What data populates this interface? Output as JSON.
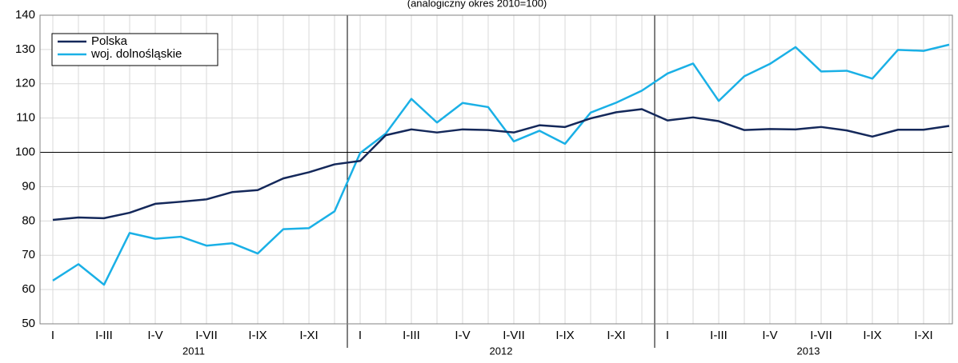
{
  "chart_data": {
    "type": "line",
    "subtitle": "(analogiczny  okres 2010=100)",
    "categories": [
      "I",
      null,
      "I-III",
      null,
      "I-V",
      null,
      "I-VII",
      null,
      "I-IX",
      null,
      "I-XI",
      null,
      "I",
      null,
      "I-III",
      null,
      "I-V",
      null,
      "I-VII",
      null,
      "I-IX",
      null,
      "I-XI",
      null,
      "I",
      null,
      "I-III",
      null,
      "I-V",
      null,
      "I-VII",
      null,
      "I-IX",
      null,
      "I-XI",
      null
    ],
    "years": [
      "2011",
      "2012",
      "2013"
    ],
    "series": [
      {
        "name": "Polska",
        "color": "#14285a",
        "values": [
          80.3,
          81,
          80.8,
          82.4,
          85,
          85.6,
          86.3,
          88.4,
          89,
          92.4,
          94.2,
          96.5,
          97.5,
          105,
          106.7,
          105.8,
          106.7,
          106.5,
          105.8,
          107.9,
          107.4,
          109.9,
          111.7,
          112.6,
          109.3,
          110.2,
          109.1,
          106.5,
          106.8,
          106.7,
          107.4,
          106.4,
          104.6,
          106.6,
          106.6,
          107.7
        ]
      },
      {
        "name": "woj. dolnośląskie",
        "color": "#1ab0e6",
        "values": [
          62.6,
          67.4,
          61.4,
          76.5,
          74.8,
          75.4,
          72.8,
          73.5,
          70.5,
          77.6,
          77.9,
          82.8,
          99.8,
          105.5,
          115.6,
          108.7,
          114.4,
          113.2,
          103.2,
          106.3,
          102.5,
          111.6,
          114.5,
          118,
          123,
          125.9,
          115,
          122.2,
          125.8,
          130.7,
          123.6,
          123.8,
          121.5,
          129.9,
          129.6,
          131.4
        ]
      }
    ],
    "ylim": [
      50,
      140
    ],
    "yticks": [
      50,
      60,
      70,
      80,
      90,
      100,
      110,
      120,
      130,
      140
    ],
    "reference_line": 100,
    "grid": true,
    "legend": "top-left"
  }
}
